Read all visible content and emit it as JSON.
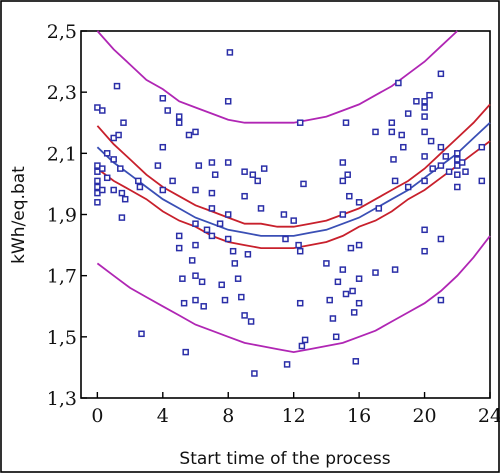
{
  "chart_data": {
    "type": "scatter",
    "title": "",
    "xlabel": "Start time of the process",
    "ylabel": "kWh/eq.bat",
    "xlim": [
      -1,
      24
    ],
    "ylim": [
      1.3,
      2.5
    ],
    "xticks": [
      0,
      4,
      8,
      12,
      16,
      20,
      24
    ],
    "xtick_labels": [
      "0",
      "4",
      "8",
      "12",
      "16",
      "20",
      "24"
    ],
    "yticks": [
      1.3,
      1.5,
      1.7,
      1.9,
      2.1,
      2.3,
      2.5
    ],
    "ytick_labels": [
      "1,3",
      "1,5",
      "1,7",
      "1,9",
      "2,1",
      "2,3",
      "2,5"
    ],
    "grid": false,
    "colors": {
      "points": "#2b2fa8",
      "fit": "#3a4fb5",
      "confidence": "#c8202c",
      "prediction": "#b026b4"
    },
    "series": [
      {
        "type": "line",
        "role": "fit",
        "x": [
          0,
          1,
          2,
          3,
          4,
          5,
          6,
          7,
          8,
          9,
          10,
          11,
          12,
          13,
          14,
          15,
          16,
          17,
          18,
          19,
          20,
          21,
          22,
          23,
          24
        ],
        "y": [
          2.12,
          2.07,
          2.03,
          1.99,
          1.95,
          1.92,
          1.89,
          1.87,
          1.85,
          1.84,
          1.83,
          1.83,
          1.83,
          1.84,
          1.85,
          1.87,
          1.89,
          1.92,
          1.95,
          1.98,
          2.02,
          2.06,
          2.1,
          2.15,
          2.2
        ]
      },
      {
        "type": "line",
        "role": "confidence-upper",
        "x": [
          0,
          1,
          2,
          3,
          4,
          5,
          6,
          7,
          8,
          9,
          10,
          11,
          12,
          13,
          14,
          15,
          16,
          17,
          18,
          19,
          20,
          21,
          22,
          23,
          24
        ],
        "y": [
          2.19,
          2.13,
          2.08,
          2.03,
          1.99,
          1.96,
          1.93,
          1.91,
          1.89,
          1.87,
          1.87,
          1.86,
          1.86,
          1.87,
          1.88,
          1.9,
          1.92,
          1.95,
          1.98,
          2.01,
          2.05,
          2.1,
          2.15,
          2.2,
          2.26
        ]
      },
      {
        "type": "line",
        "role": "confidence-lower",
        "x": [
          0,
          1,
          2,
          3,
          4,
          5,
          6,
          7,
          8,
          9,
          10,
          11,
          12,
          13,
          14,
          15,
          16,
          17,
          18,
          19,
          20,
          21,
          22,
          23,
          24
        ],
        "y": [
          2.05,
          2.01,
          1.98,
          1.95,
          1.91,
          1.88,
          1.86,
          1.83,
          1.81,
          1.8,
          1.79,
          1.79,
          1.79,
          1.8,
          1.81,
          1.83,
          1.86,
          1.88,
          1.91,
          1.95,
          1.98,
          2.02,
          2.06,
          2.1,
          2.14
        ]
      },
      {
        "type": "line",
        "role": "prediction-upper",
        "x": [
          0,
          1,
          2,
          3,
          4,
          5,
          6,
          7,
          8,
          9,
          10,
          11,
          12,
          13,
          14,
          15,
          16,
          17,
          18,
          19,
          20,
          21,
          22,
          23,
          24
        ],
        "y": [
          2.5,
          2.44,
          2.39,
          2.34,
          2.31,
          2.27,
          2.25,
          2.23,
          2.21,
          2.2,
          2.2,
          2.2,
          2.2,
          2.21,
          2.22,
          2.24,
          2.26,
          2.29,
          2.32,
          2.36,
          2.4,
          2.45,
          2.5,
          2.56,
          2.62
        ]
      },
      {
        "type": "line",
        "role": "prediction-lower",
        "x": [
          0,
          1,
          2,
          3,
          4,
          5,
          6,
          7,
          8,
          9,
          10,
          11,
          12,
          13,
          14,
          15,
          16,
          17,
          18,
          19,
          20,
          21,
          22,
          23,
          24
        ],
        "y": [
          1.74,
          1.7,
          1.66,
          1.63,
          1.6,
          1.57,
          1.54,
          1.52,
          1.5,
          1.48,
          1.47,
          1.46,
          1.45,
          1.46,
          1.47,
          1.48,
          1.5,
          1.52,
          1.55,
          1.58,
          1.61,
          1.65,
          1.7,
          1.76,
          1.83
        ]
      },
      {
        "type": "scatter",
        "role": "observations",
        "points": [
          [
            0,
            2.25
          ],
          [
            0,
            2.06
          ],
          [
            0,
            2.04
          ],
          [
            0,
            2.01
          ],
          [
            0,
            1.99
          ],
          [
            0,
            1.97
          ],
          [
            0,
            1.94
          ],
          [
            0.3,
            2.24
          ],
          [
            0.3,
            2.05
          ],
          [
            0.3,
            1.98
          ],
          [
            0.6,
            2.1
          ],
          [
            0.6,
            2.02
          ],
          [
            1,
            2.15
          ],
          [
            1,
            2.08
          ],
          [
            1,
            1.98
          ],
          [
            1.2,
            2.32
          ],
          [
            1.3,
            2.16
          ],
          [
            1.4,
            2.05
          ],
          [
            1.5,
            1.97
          ],
          [
            1.5,
            1.89
          ],
          [
            1.6,
            2.2
          ],
          [
            1.7,
            1.95
          ],
          [
            2.5,
            2.01
          ],
          [
            2.6,
            1.99
          ],
          [
            2.7,
            1.51
          ],
          [
            3.7,
            2.06
          ],
          [
            4,
            2.28
          ],
          [
            4,
            2.12
          ],
          [
            4,
            1.98
          ],
          [
            4.3,
            2.24
          ],
          [
            4.6,
            2.01
          ],
          [
            5,
            2.22
          ],
          [
            5,
            2.2
          ],
          [
            5,
            1.83
          ],
          [
            5,
            1.79
          ],
          [
            5.2,
            1.69
          ],
          [
            5.3,
            1.61
          ],
          [
            5.4,
            1.45
          ],
          [
            5.6,
            2.16
          ],
          [
            5.8,
            1.75
          ],
          [
            6,
            2.17
          ],
          [
            6,
            1.98
          ],
          [
            6,
            1.87
          ],
          [
            6,
            1.8
          ],
          [
            6,
            1.7
          ],
          [
            6,
            1.62
          ],
          [
            6.2,
            2.06
          ],
          [
            6.4,
            1.68
          ],
          [
            6.5,
            1.6
          ],
          [
            6.7,
            1.85
          ],
          [
            7,
            2.07
          ],
          [
            7,
            1.97
          ],
          [
            7,
            1.92
          ],
          [
            7,
            1.83
          ],
          [
            7.2,
            2.03
          ],
          [
            7.5,
            1.87
          ],
          [
            7.6,
            1.67
          ],
          [
            7.8,
            1.62
          ],
          [
            8,
            2.27
          ],
          [
            8,
            2.07
          ],
          [
            8,
            1.9
          ],
          [
            8,
            1.82
          ],
          [
            8.1,
            2.43
          ],
          [
            8.3,
            1.78
          ],
          [
            8.4,
            1.74
          ],
          [
            8.6,
            1.69
          ],
          [
            8.8,
            1.63
          ],
          [
            9,
            2.04
          ],
          [
            9,
            1.96
          ],
          [
            9,
            1.57
          ],
          [
            9.2,
            1.77
          ],
          [
            9.4,
            1.55
          ],
          [
            9.5,
            2.03
          ],
          [
            9.6,
            1.38
          ],
          [
            9.8,
            2.01
          ],
          [
            10,
            1.92
          ],
          [
            10.2,
            2.05
          ],
          [
            11.4,
            1.9
          ],
          [
            11.5,
            1.82
          ],
          [
            11.6,
            1.41
          ],
          [
            12,
            1.88
          ],
          [
            12.3,
            1.8
          ],
          [
            12.4,
            1.78
          ],
          [
            12.4,
            2.2
          ],
          [
            12.4,
            1.61
          ],
          [
            12.5,
            1.47
          ],
          [
            12.6,
            2.0
          ],
          [
            12.7,
            1.49
          ],
          [
            14,
            1.74
          ],
          [
            14.2,
            1.62
          ],
          [
            14.4,
            1.56
          ],
          [
            14.6,
            1.5
          ],
          [
            14.7,
            1.68
          ],
          [
            15,
            2.07
          ],
          [
            15,
            2.01
          ],
          [
            15,
            1.9
          ],
          [
            15,
            1.72
          ],
          [
            15.2,
            2.2
          ],
          [
            15.2,
            1.64
          ],
          [
            15.3,
            2.03
          ],
          [
            15.4,
            1.96
          ],
          [
            15.5,
            1.79
          ],
          [
            15.6,
            1.65
          ],
          [
            15.7,
            1.58
          ],
          [
            15.8,
            1.42
          ],
          [
            16,
            1.94
          ],
          [
            16,
            1.8
          ],
          [
            16,
            1.69
          ],
          [
            16,
            1.61
          ],
          [
            17,
            2.17
          ],
          [
            17,
            1.71
          ],
          [
            17.2,
            1.92
          ],
          [
            18,
            2.2
          ],
          [
            18,
            2.17
          ],
          [
            18.1,
            2.08
          ],
          [
            18.2,
            2.01
          ],
          [
            18.2,
            1.72
          ],
          [
            18.4,
            2.33
          ],
          [
            18.6,
            2.16
          ],
          [
            18.7,
            2.12
          ],
          [
            19,
            2.23
          ],
          [
            19,
            1.99
          ],
          [
            19.5,
            2.27
          ],
          [
            20,
            2.27
          ],
          [
            20,
            2.25
          ],
          [
            20,
            2.22
          ],
          [
            20,
            2.17
          ],
          [
            20,
            2.09
          ],
          [
            20,
            2.01
          ],
          [
            20,
            1.85
          ],
          [
            20,
            1.78
          ],
          [
            20.3,
            2.29
          ],
          [
            20.4,
            2.14
          ],
          [
            20.5,
            2.05
          ],
          [
            21,
            2.36
          ],
          [
            21,
            2.12
          ],
          [
            21,
            2.06
          ],
          [
            21,
            1.82
          ],
          [
            21,
            1.62
          ],
          [
            21.3,
            2.09
          ],
          [
            21.5,
            2.04
          ],
          [
            22,
            2.1
          ],
          [
            22,
            2.08
          ],
          [
            22,
            2.06
          ],
          [
            22,
            2.03
          ],
          [
            22,
            1.99
          ],
          [
            22.3,
            2.07
          ],
          [
            22.5,
            2.04
          ],
          [
            23.5,
            2.12
          ],
          [
            23.5,
            2.01
          ]
        ]
      }
    ]
  }
}
